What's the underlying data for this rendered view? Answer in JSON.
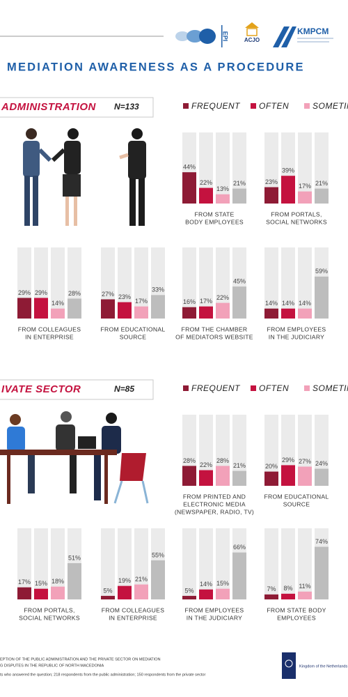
{
  "header": {
    "logos": [
      "EPI",
      "ACJO",
      "KMPCM"
    ],
    "title": "MEDIATION AWARENESS AS A PROCEDURE"
  },
  "sections": [
    {
      "title": "ADMINISTRATION",
      "n": "N=133",
      "legend": [
        {
          "name": "FREQUENT",
          "color": "#8e1b35"
        },
        {
          "name": "OFTEN",
          "color": "#c4123f"
        },
        {
          "name": "SOMETIM",
          "color": "#f2a1b9"
        }
      ]
    },
    {
      "title": "IVATE SECTOR",
      "n": "N=85",
      "legend": [
        {
          "name": "FREQUENT",
          "color": "#8e1b35"
        },
        {
          "name": "OFTEN",
          "color": "#c4123f"
        },
        {
          "name": "SOMETIME",
          "color": "#f2a1b9"
        }
      ]
    }
  ],
  "chart_data": [
    {
      "type": "bar",
      "caption": [
        "FROM STATE",
        "BODY EMPLOYEES"
      ],
      "values": [
        44,
        22,
        13,
        21
      ],
      "value_labels": [
        "44%",
        "22%",
        "13%",
        "21%"
      ],
      "colors": [
        "#8e1b35",
        "#c4123f",
        "#f2a1b9",
        "#bdbdbd"
      ],
      "ylim": [
        0,
        100
      ]
    },
    {
      "type": "bar",
      "caption": [
        "FROM PORTALS,",
        "SOCIAL NETWORKS"
      ],
      "values": [
        23,
        39,
        17,
        21
      ],
      "value_labels": [
        "23%",
        "39%",
        "17%",
        "21%"
      ],
      "colors": [
        "#8e1b35",
        "#c4123f",
        "#f2a1b9",
        "#bdbdbd"
      ],
      "ylim": [
        0,
        100
      ]
    },
    {
      "type": "bar",
      "caption": [
        "FROM COLLEAGUES",
        "IN ENTERPRISE"
      ],
      "values": [
        29,
        29,
        14,
        28
      ],
      "value_labels": [
        "29%",
        "29%",
        "14%",
        "28%"
      ],
      "colors": [
        "#8e1b35",
        "#c4123f",
        "#f2a1b9",
        "#bdbdbd"
      ],
      "ylim": [
        0,
        100
      ]
    },
    {
      "type": "bar",
      "caption": [
        "FROM EDUCATIONAL",
        "SOURCE"
      ],
      "values": [
        27,
        23,
        17,
        33
      ],
      "value_labels": [
        "27%",
        "23%",
        "17%",
        "33%"
      ],
      "colors": [
        "#8e1b35",
        "#c4123f",
        "#f2a1b9",
        "#bdbdbd"
      ],
      "ylim": [
        0,
        100
      ]
    },
    {
      "type": "bar",
      "caption": [
        "FROM THE CHAMBER",
        "OF MEDIATORS WEBSITE"
      ],
      "values": [
        16,
        17,
        22,
        45
      ],
      "value_labels": [
        "16%",
        "17%",
        "22%",
        "45%"
      ],
      "colors": [
        "#8e1b35",
        "#c4123f",
        "#f2a1b9",
        "#bdbdbd"
      ],
      "ylim": [
        0,
        100
      ]
    },
    {
      "type": "bar",
      "caption": [
        "FROM EMPLOYEES",
        "IN THE JUDICIARY"
      ],
      "values": [
        14,
        14,
        14,
        59
      ],
      "value_labels": [
        "14%",
        "14%",
        "14%",
        "59%"
      ],
      "colors": [
        "#8e1b35",
        "#c4123f",
        "#f2a1b9",
        "#bdbdbd"
      ],
      "ylim": [
        0,
        100
      ]
    },
    {
      "type": "bar",
      "caption": [
        "FROM PRINTED AND",
        "ELECTRONIC MEDIA",
        "(NEWSPAPER, RADIO, TV)"
      ],
      "values": [
        28,
        22,
        28,
        21
      ],
      "value_labels": [
        "28%",
        "22%",
        "28%",
        "21%"
      ],
      "colors": [
        "#8e1b35",
        "#c4123f",
        "#f2a1b9",
        "#bdbdbd"
      ],
      "ylim": [
        0,
        100
      ]
    },
    {
      "type": "bar",
      "caption": [
        "FROM EDUCATIONAL",
        "SOURCE"
      ],
      "values": [
        20,
        29,
        27,
        24
      ],
      "value_labels": [
        "20%",
        "29%",
        "27%",
        "24%"
      ],
      "colors": [
        "#8e1b35",
        "#c4123f",
        "#f2a1b9",
        "#bdbdbd"
      ],
      "ylim": [
        0,
        100
      ]
    },
    {
      "type": "bar",
      "caption": [
        "FROM PORTALS,",
        "SOCIAL NETWORKS"
      ],
      "values": [
        17,
        15,
        18,
        51
      ],
      "value_labels": [
        "17%",
        "15%",
        "18%",
        "51%"
      ],
      "colors": [
        "#8e1b35",
        "#c4123f",
        "#f2a1b9",
        "#bdbdbd"
      ],
      "ylim": [
        0,
        100
      ]
    },
    {
      "type": "bar",
      "caption": [
        "FROM COLLEAGUES",
        "IN ENTERPRISE"
      ],
      "values": [
        5,
        19,
        21,
        55
      ],
      "value_labels": [
        "5%",
        "19%",
        "21%",
        "55%"
      ],
      "colors": [
        "#8e1b35",
        "#c4123f",
        "#f2a1b9",
        "#bdbdbd"
      ],
      "ylim": [
        0,
        100
      ]
    },
    {
      "type": "bar",
      "caption": [
        "FROM EMPLOYEES",
        "IN THE JUDICIARY"
      ],
      "values": [
        5,
        14,
        15,
        66
      ],
      "value_labels": [
        "5%",
        "14%",
        "15%",
        "66%"
      ],
      "colors": [
        "#8e1b35",
        "#c4123f",
        "#f2a1b9",
        "#bdbdbd"
      ],
      "ylim": [
        0,
        100
      ]
    },
    {
      "type": "bar",
      "caption": [
        "FROM STATE BODY",
        "EMPLOYEES"
      ],
      "values": [
        7,
        8,
        11,
        74
      ],
      "value_labels": [
        "7%",
        "8%",
        "11%",
        "74%"
      ],
      "colors": [
        "#8e1b35",
        "#c4123f",
        "#f2a1b9",
        "#bdbdbd"
      ],
      "ylim": [
        0,
        100
      ]
    }
  ],
  "footer": {
    "lines": [
      "EPTION OF THE PUBLIC ADMINISTRATION AND THE PRIVATE SECTOR ON MEDIATION",
      "G DISPUTES IN THE REPUBLIC OF NORTH MACEDONIA",
      "ts who answered the question; 218 respondents from the public administration; 150 respondents from the private sector"
    ],
    "flag": "Kingdom of the Netherlands"
  }
}
